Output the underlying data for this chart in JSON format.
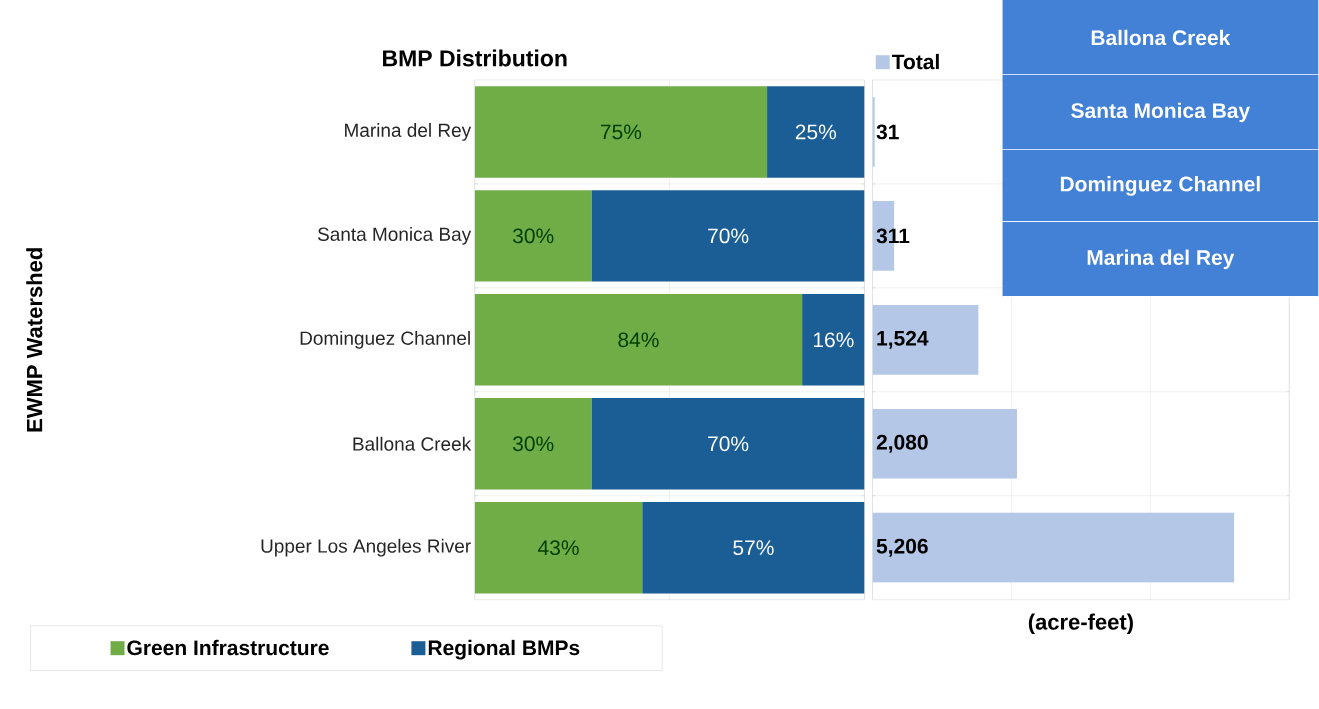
{
  "chart_data": [
    {
      "type": "bar",
      "title": "BMP Distribution",
      "ylabel": "EWMP Watershed",
      "orientation": "horizontal",
      "stacked": true,
      "xlim": [
        0,
        100
      ],
      "xticks": [
        {
          "value": 0,
          "label": null
        },
        {
          "value": 50,
          "label": null
        },
        {
          "value": 100,
          "label": null
        }
      ],
      "grid": true,
      "legend": "bottom",
      "tick_labels": "y",
      "categories": [
        "Marina del Rey",
        "Santa Monica Bay",
        "Dominguez Channel",
        "Ballona Creek",
        "Upper Los Angeles River"
      ],
      "series": [
        {
          "name": "Green Infrastructure",
          "color": "#70ad47",
          "values": [
            75,
            30,
            84,
            30,
            43
          ],
          "value_labels": [
            "75%",
            "30%",
            "84%",
            "30%",
            "43%"
          ]
        },
        {
          "name": "Regional BMPs",
          "color": "#1b5e96",
          "values": [
            25,
            70,
            16,
            70,
            57
          ],
          "value_labels": [
            "25%",
            "70%",
            "16%",
            "70%",
            "57%"
          ]
        }
      ]
    },
    {
      "type": "bar",
      "xlabel": "(acre-feet)",
      "orientation": "horizontal",
      "xlim": [
        0,
        6000
      ],
      "xticks": [
        {
          "value": 0,
          "label": null
        },
        {
          "value": 2000,
          "label": null
        },
        {
          "value": 4000,
          "label": null
        },
        {
          "value": 6000,
          "label": null
        }
      ],
      "grid": true,
      "legend": "top left",
      "tick_labels": false,
      "categories": [
        null,
        null,
        null,
        null,
        null
      ],
      "series": [
        {
          "name": "Total",
          "color": "#b4c7e7",
          "values": [
            31,
            311,
            1524,
            2080,
            5206
          ],
          "value_labels": [
            "31",
            "311",
            "1,524",
            "2,080",
            "5,206"
          ]
        }
      ]
    },
    {
      "type": "other",
      "annotations": [
        "Ballona Creek",
        "Santa Monica Bay",
        "Dominguez Channel",
        "Marina del Rey"
      ]
    }
  ]
}
